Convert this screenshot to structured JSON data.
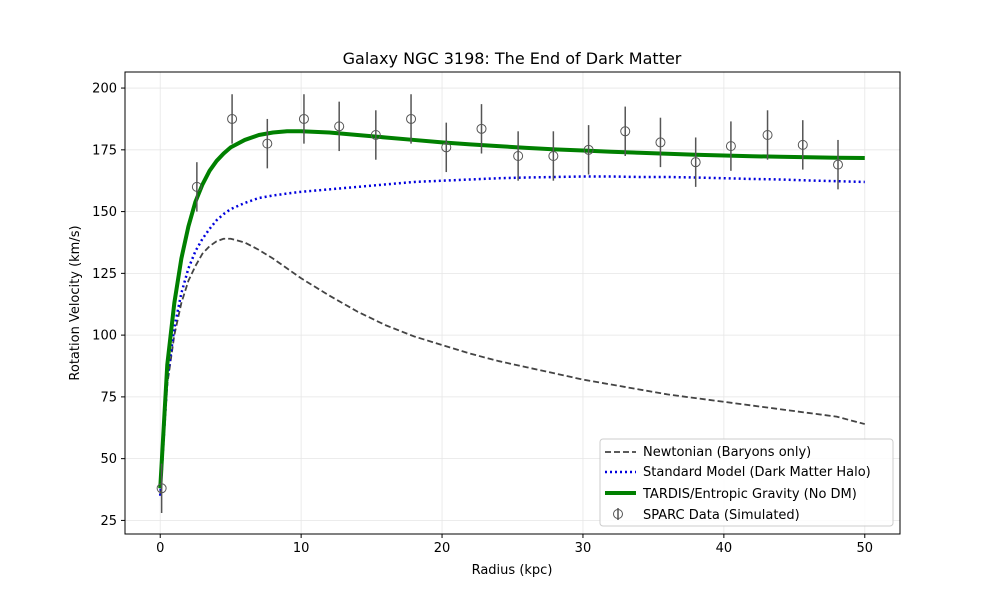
{
  "chart_data": {
    "type": "line",
    "title": "Galaxy NGC 3198: The End of Dark Matter",
    "xlabel": "Radius (kpc)",
    "ylabel": "Rotation Velocity (km/s)",
    "xlim": [
      -2.5,
      52.5
    ],
    "ylim": [
      19.5,
      206.5
    ],
    "xticks": [
      0,
      10,
      20,
      30,
      40,
      50
    ],
    "yticks": [
      25,
      50,
      75,
      100,
      125,
      150,
      175,
      200
    ],
    "grid": true,
    "legend_position": "lower-right",
    "series": [
      {
        "name": "Newtonian (Baryons only)",
        "style": "dashed",
        "color": "#444444",
        "x": [
          0,
          0.5,
          1,
          1.5,
          2,
          2.5,
          3,
          3.5,
          4,
          4.5,
          5,
          6,
          7,
          8,
          9,
          10,
          12,
          14,
          16,
          18,
          20,
          22,
          24,
          26,
          28,
          30,
          32,
          34,
          36,
          38,
          40,
          42,
          44,
          46,
          48,
          50
        ],
        "y": [
          35,
          80,
          100,
          113,
          122,
          128,
          133,
          136,
          138,
          139,
          139,
          137.5,
          134.5,
          131,
          127,
          123,
          116,
          109.5,
          104,
          99.5,
          96,
          92.5,
          89.5,
          87,
          84.5,
          82,
          80,
          78,
          76,
          74.5,
          73,
          71.5,
          70,
          68.5,
          67,
          64
        ]
      },
      {
        "name": "Standard Model (Dark Matter Halo)",
        "style": "dotted",
        "color": "#0000dd",
        "x": [
          0,
          0.5,
          1,
          1.5,
          2,
          2.5,
          3,
          3.5,
          4,
          4.5,
          5,
          6,
          7,
          8,
          9,
          10,
          12,
          14,
          16,
          18,
          20,
          22,
          24,
          26,
          28,
          30,
          32,
          34,
          36,
          38,
          40,
          42,
          44,
          46,
          48,
          50
        ],
        "y": [
          35,
          82,
          103,
          117,
          127,
          134,
          139,
          143,
          146.5,
          149,
          151,
          153.5,
          155.5,
          156.5,
          157.3,
          158,
          159,
          160,
          161,
          162,
          162.5,
          163,
          163.5,
          163.8,
          164,
          164.2,
          164.2,
          164,
          164,
          163.8,
          163.5,
          163.2,
          163,
          162.6,
          162.3,
          162
        ]
      },
      {
        "name": "TARDIS/Entropic Gravity (No DM)",
        "style": "solid",
        "color": "#008000",
        "x": [
          0,
          0.5,
          1,
          1.5,
          2,
          2.5,
          3,
          3.5,
          4,
          4.5,
          5,
          6,
          7,
          8,
          9,
          10,
          12,
          14,
          16,
          18,
          20,
          22,
          24,
          26,
          28,
          30,
          32,
          34,
          36,
          38,
          40,
          42,
          44,
          46,
          48,
          50
        ],
        "y": [
          38,
          88,
          113,
          131,
          144,
          154,
          161,
          166.5,
          170.5,
          173.5,
          176,
          179,
          181,
          182,
          182.5,
          182.5,
          182,
          181,
          180,
          179,
          178,
          177.2,
          176.5,
          175.8,
          175.2,
          174.7,
          174.2,
          173.8,
          173.4,
          173,
          172.7,
          172.4,
          172.2,
          172,
          171.8,
          171.7
        ]
      }
    ],
    "scatter_series": {
      "name": "SPARC Data (Simulated)",
      "color": "#555555",
      "x": [
        0.1,
        2.6,
        5.1,
        7.6,
        10.2,
        12.7,
        15.3,
        17.8,
        20.3,
        22.8,
        25.4,
        27.9,
        30.4,
        33.0,
        35.5,
        38.0,
        40.5,
        43.1,
        45.6,
        48.1
      ],
      "y": [
        38,
        160,
        187.5,
        177.5,
        187.5,
        184.5,
        181,
        187.5,
        176,
        183.5,
        172.5,
        172.5,
        175,
        182.5,
        178,
        170,
        176.5,
        181,
        177,
        169
      ],
      "yerr": [
        10,
        10,
        10,
        10,
        10,
        10,
        10,
        10,
        10,
        10,
        10,
        10,
        10,
        10,
        10,
        10,
        10,
        10,
        10,
        10
      ]
    }
  }
}
